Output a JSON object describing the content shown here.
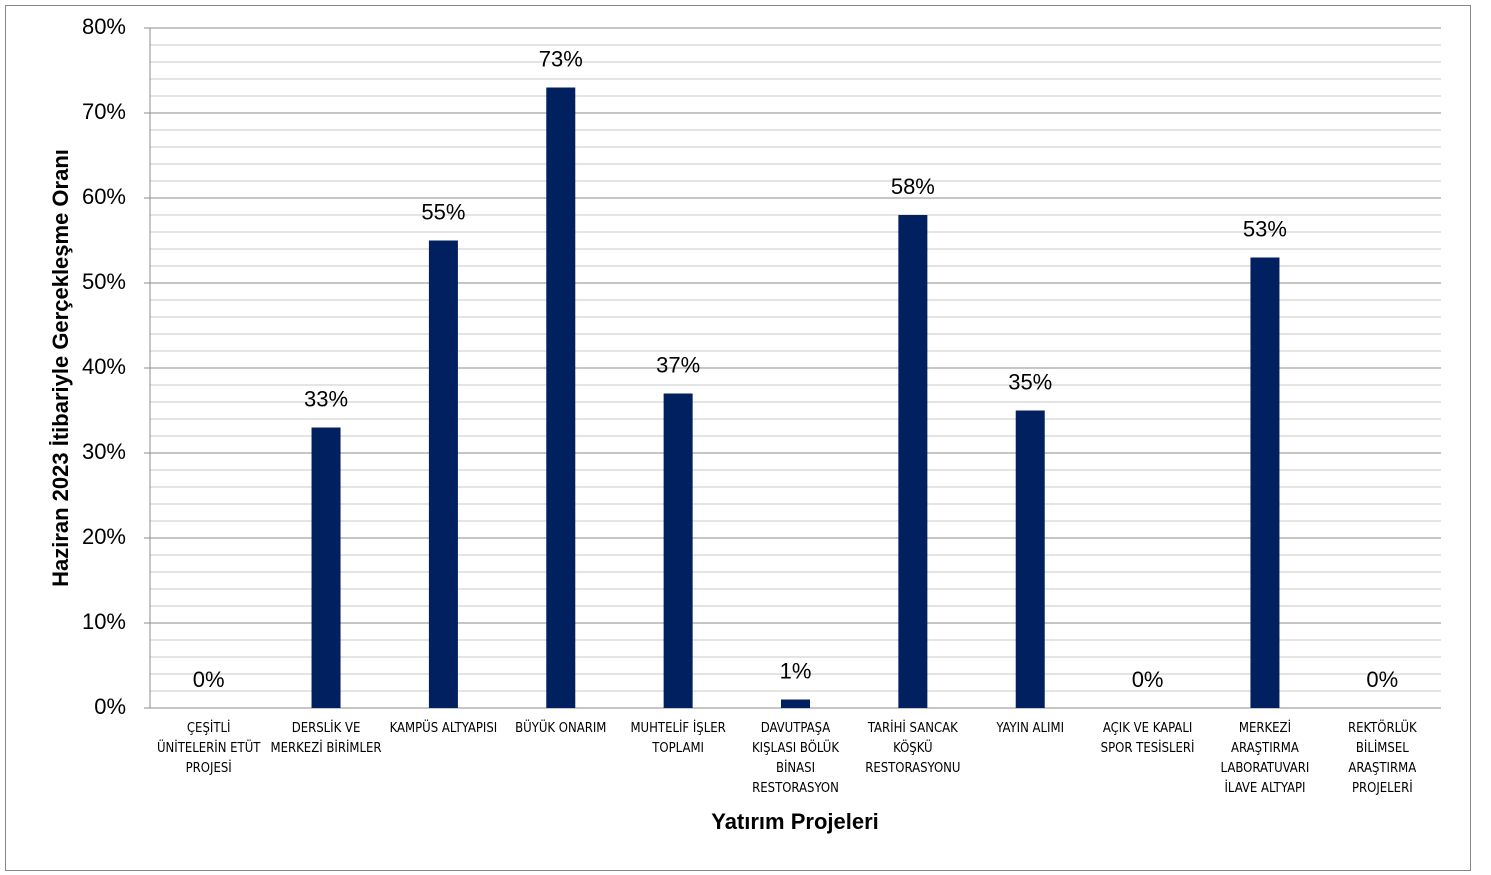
{
  "chart_data": {
    "type": "bar",
    "y_axis_label": "Haziran 2023 İtibariyle  Gerçekleşme Oranı",
    "x_axis_label": "Yatırım Projeleri",
    "categories": [
      "ÇEŞİTLİ ÜNİTELERİN ETÜT PROJESİ",
      "DERSLİK VE MERKEZİ BİRİMLER",
      "KAMPÜS ALTYAPISI",
      "BÜYÜK ONARIM",
      "MUHTELİF İŞLER TOPLAMI",
      "DAVUTPAŞA KIŞLASI BÖLÜK BİNASI RESTORASYON",
      "TARİHİ SANCAK KÖŞKÜ RESTORASYONU",
      "YAYIN ALIMI",
      "AÇIK VE KAPALI SPOR TESİSLERİ",
      "MERKEZİ ARAŞTIRMA LABORATUVARI İLAVE ALTYAPI",
      "REKTÖRLÜK BİLİMSEL ARAŞTIRMA PROJELERİ"
    ],
    "values": [
      0,
      33,
      55,
      73,
      37,
      1,
      58,
      35,
      0,
      53,
      0
    ],
    "value_labels": [
      "0%",
      "33%",
      "55%",
      "73%",
      "37%",
      "1%",
      "58%",
      "35%",
      "0%",
      "53%",
      "0%"
    ],
    "color": "#002060",
    "ylim": [
      0,
      80
    ],
    "yticks": [
      {
        "value": 0,
        "label": "0%"
      },
      {
        "value": 10,
        "label": "10%"
      },
      {
        "value": 20,
        "label": "20%"
      },
      {
        "value": 30,
        "label": "30%"
      },
      {
        "value": 40,
        "label": "40%"
      },
      {
        "value": 50,
        "label": "50%"
      },
      {
        "value": 60,
        "label": "60%"
      },
      {
        "value": 70,
        "label": "70%"
      },
      {
        "value": 80,
        "label": "80%"
      }
    ],
    "minor_yticks": [
      2,
      4,
      6,
      8,
      12,
      14,
      16,
      18,
      22,
      24,
      26,
      28,
      32,
      34,
      36,
      38,
      42,
      44,
      46,
      48,
      52,
      54,
      56,
      58,
      62,
      64,
      66,
      68,
      72,
      74,
      76,
      78
    ],
    "grid": true
  }
}
